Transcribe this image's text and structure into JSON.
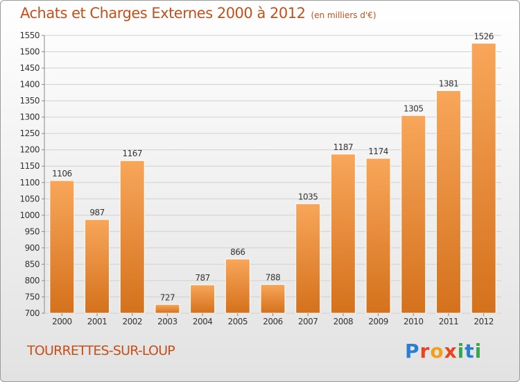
{
  "header": {
    "title": "Achats et Charges Externes 2000 à 2012",
    "unit": "(en milliers d'€)"
  },
  "footer": {
    "commune": "TOURRETTES-SUR-LOUP",
    "logo_letters": [
      {
        "ch": "P",
        "color": "#2b7fd0"
      },
      {
        "ch": "r",
        "color": "#e8451e"
      },
      {
        "ch": "o",
        "color": "#f2a01a"
      },
      {
        "ch": "x",
        "color": "#e8451e"
      },
      {
        "ch": "i",
        "color": "#3aa64a"
      },
      {
        "ch": "t",
        "color": "#2b7fd0"
      },
      {
        "ch": "i",
        "color": "#3aa64a"
      }
    ]
  },
  "chart_data": {
    "type": "bar",
    "categories": [
      "2000",
      "2001",
      "2002",
      "2003",
      "2004",
      "2005",
      "2006",
      "2007",
      "2008",
      "2009",
      "2010",
      "2011",
      "2012"
    ],
    "values": [
      1106,
      987,
      1167,
      727,
      787,
      866,
      788,
      1035,
      1187,
      1174,
      1305,
      1381,
      1526
    ],
    "ylim": [
      700,
      1550
    ],
    "yticks": [
      700,
      750,
      800,
      850,
      900,
      950,
      1000,
      1050,
      1100,
      1150,
      1200,
      1250,
      1300,
      1350,
      1400,
      1450,
      1500,
      1550
    ],
    "grid": true,
    "bar_color_top": "#f8a65a",
    "bar_color_bottom": "#d4711c"
  }
}
